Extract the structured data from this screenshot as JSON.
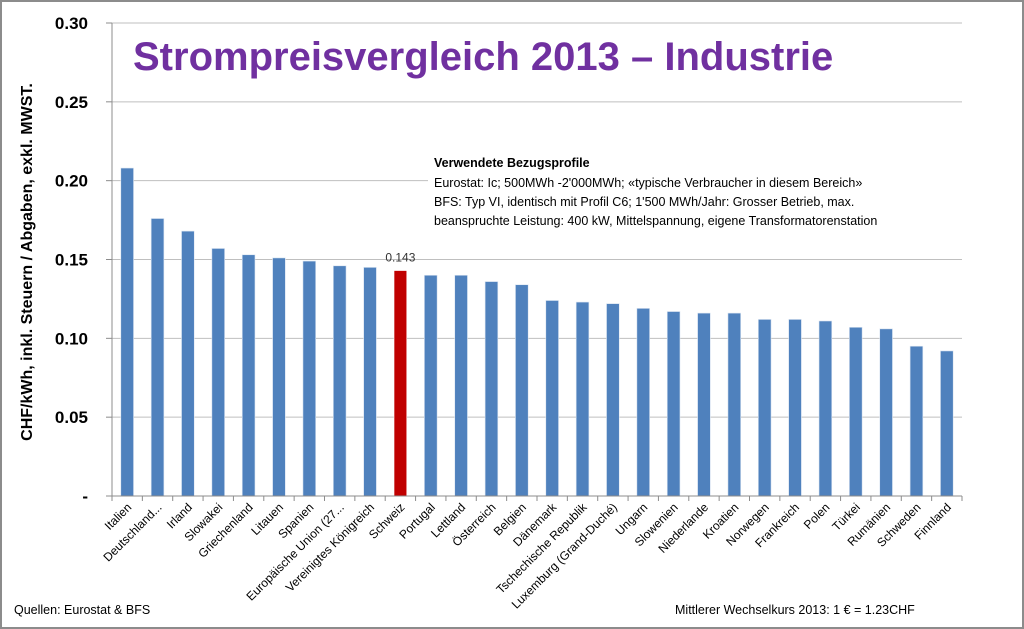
{
  "chart_data": {
    "type": "bar",
    "title": "Strompreisvergleich 2013 – Industrie",
    "xlabel": "",
    "ylabel": "CHF/kWh, inkl. Steuern / Abgaben, exkl. MWST.",
    "ylim": [
      0,
      0.3
    ],
    "yticks": [
      0,
      0.05,
      0.1,
      0.15,
      0.2,
      0.25,
      0.3
    ],
    "ytick_labels": [
      "-",
      "0.05",
      "0.10",
      "0.15",
      "0.20",
      "0.25",
      "0.30"
    ],
    "grid": true,
    "categories": [
      "Italien",
      "Deutschland...",
      "Irland",
      "Slowakei",
      "Griechenland",
      "Litauen",
      "Spanien",
      "Europäische Union (27...",
      "Vereinigtes Königreich",
      "Schweiz",
      "Portugal",
      "Lettland",
      "Österreich",
      "Belgien",
      "Dänemark",
      "Tschechische Republik",
      "Luxemburg (Grand-Duché)",
      "Ungarn",
      "Slowenien",
      "Niederlande",
      "Kroatien",
      "Norwegen",
      "Frankreich",
      "Polen",
      "Türkei",
      "Rumänien",
      "Schweden",
      "Finnland"
    ],
    "values": [
      0.208,
      0.176,
      0.168,
      0.157,
      0.153,
      0.151,
      0.149,
      0.146,
      0.145,
      0.143,
      0.14,
      0.14,
      0.136,
      0.134,
      0.124,
      0.123,
      0.122,
      0.119,
      0.117,
      0.116,
      0.116,
      0.112,
      0.112,
      0.111,
      0.107,
      0.106,
      0.095,
      0.092
    ],
    "highlight": {
      "category": "Schweiz",
      "value": 0.143,
      "label": "0.143"
    },
    "colors": {
      "bar": "#4f81bd",
      "highlight": "#c00000",
      "title": "#7030a0",
      "grid": "#bfbfbf"
    },
    "legend": "none"
  },
  "annotation": {
    "heading": "Verwendete Bezugsprofile",
    "lines": [
      "Eurostat: Ic; 500MWh -2'000MWh; «typische Verbraucher in diesem Bereich»",
      "BFS: Typ VI, identisch mit Profil C6; 1'500 MWh/Jahr: Grosser Betrieb, max.",
      "beanspruchte Leistung: 400 kW, Mittelspannung, eigene Transformatorenstation"
    ]
  },
  "footer": {
    "sources": "Quellen: Eurostat & BFS",
    "exchange_rate": "Mittlerer Wechselkurs 2013: 1 € = 1.23CHF"
  }
}
